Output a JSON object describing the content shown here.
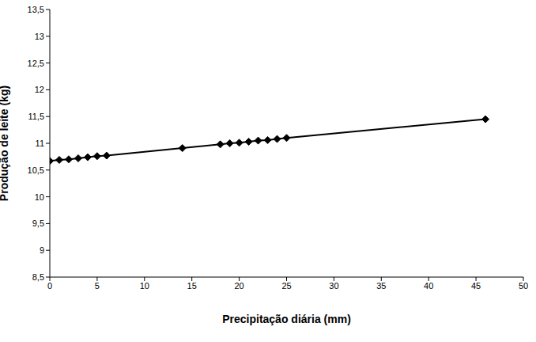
{
  "chart_data": {
    "type": "line",
    "x_label": "Precipitação diária (mm)",
    "y_label": "Produção de leite (kg)",
    "x": [
      0,
      1,
      2,
      3,
      4,
      5,
      6,
      14,
      18,
      19,
      20,
      21,
      22,
      23,
      24,
      25,
      46
    ],
    "values": [
      10.67,
      10.69,
      10.7,
      10.72,
      10.74,
      10.76,
      10.77,
      10.91,
      10.98,
      11.0,
      11.01,
      11.03,
      11.05,
      11.06,
      11.08,
      11.1,
      11.45
    ],
    "color": "#000000",
    "marker": "diamond",
    "line_style": "solid",
    "grid": false,
    "xlim": [
      0,
      50
    ],
    "xticks": [
      0,
      5,
      10,
      15,
      20,
      25,
      30,
      35,
      40,
      45,
      50
    ],
    "ylim": [
      8.5,
      13.5
    ],
    "yticks": [
      {
        "value": 8.5,
        "label": "8,5"
      },
      9,
      {
        "value": 9.5,
        "label": "9,5"
      },
      10,
      {
        "value": 10.5,
        "label": "10,5"
      },
      11,
      {
        "value": 11.5,
        "label": "11,5"
      },
      12,
      {
        "value": 12.5,
        "label": "12,5"
      },
      13,
      {
        "value": 13.5,
        "label": "13,5"
      }
    ]
  }
}
